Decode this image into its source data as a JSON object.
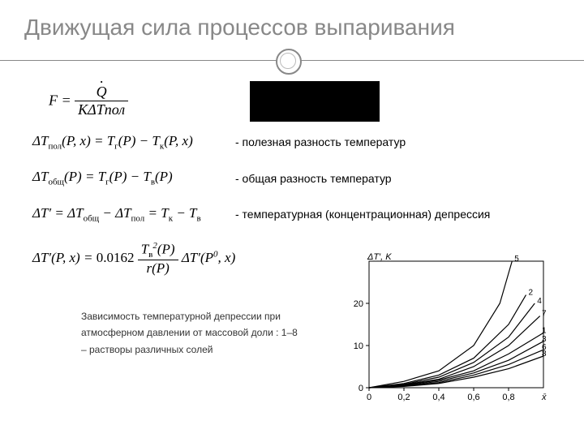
{
  "title": "Движущая сила процессов выпаривания",
  "rows": {
    "r1_desc": "- полезная разность температур",
    "r2_desc": "- общая разность температур",
    "r3_desc": "- температурная (концентрационная) депрессия"
  },
  "caption": {
    "l1": "Зависимость температурной депрессии при",
    "l2": "атмосферном давлении от массовой доли : 1–8",
    "l3": "– растворы различных солей"
  },
  "chart": {
    "ylabel": "ΔT′, K",
    "xlabel": "x̄",
    "yticks": [
      0,
      10,
      20
    ],
    "xticks": [
      0,
      0.2,
      0.4,
      0.6,
      0.8
    ],
    "curve_labels": [
      "1",
      "2",
      "3",
      "4",
      "5",
      "6",
      "7",
      "8"
    ],
    "bg": "#ffffff",
    "line_color": "#000000",
    "grid_color": "#cccccc",
    "font_size": 11,
    "curves": [
      {
        "n": "5",
        "pts": [
          [
            0,
            0
          ],
          [
            0.2,
            1.5
          ],
          [
            0.4,
            4
          ],
          [
            0.6,
            10
          ],
          [
            0.75,
            20
          ],
          [
            0.82,
            30
          ]
        ]
      },
      {
        "n": "2",
        "pts": [
          [
            0,
            0
          ],
          [
            0.2,
            1
          ],
          [
            0.4,
            3
          ],
          [
            0.6,
            7
          ],
          [
            0.8,
            15
          ],
          [
            0.9,
            22
          ]
        ]
      },
      {
        "n": "4",
        "pts": [
          [
            0,
            0
          ],
          [
            0.2,
            0.8
          ],
          [
            0.4,
            2.5
          ],
          [
            0.6,
            6
          ],
          [
            0.8,
            12
          ],
          [
            0.95,
            20
          ]
        ]
      },
      {
        "n": "7",
        "pts": [
          [
            0,
            0
          ],
          [
            0.2,
            0.7
          ],
          [
            0.4,
            2
          ],
          [
            0.6,
            5
          ],
          [
            0.8,
            10
          ],
          [
            0.98,
            17
          ]
        ]
      },
      {
        "n": "1",
        "pts": [
          [
            0,
            0
          ],
          [
            0.2,
            0.6
          ],
          [
            0.4,
            1.8
          ],
          [
            0.6,
            4
          ],
          [
            0.8,
            8
          ],
          [
            1.0,
            13
          ]
        ]
      },
      {
        "n": "3",
        "pts": [
          [
            0,
            0
          ],
          [
            0.2,
            0.5
          ],
          [
            0.4,
            1.5
          ],
          [
            0.6,
            3.5
          ],
          [
            0.8,
            6.5
          ],
          [
            1.0,
            11
          ]
        ]
      },
      {
        "n": "6",
        "pts": [
          [
            0,
            0
          ],
          [
            0.2,
            0.4
          ],
          [
            0.4,
            1.2
          ],
          [
            0.6,
            3
          ],
          [
            0.8,
            5.5
          ],
          [
            1.0,
            9
          ]
        ]
      },
      {
        "n": "8",
        "pts": [
          [
            0,
            0
          ],
          [
            0.2,
            0.3
          ],
          [
            0.4,
            1
          ],
          [
            0.6,
            2.5
          ],
          [
            0.8,
            4.5
          ],
          [
            1.0,
            7.5
          ]
        ]
      }
    ]
  }
}
